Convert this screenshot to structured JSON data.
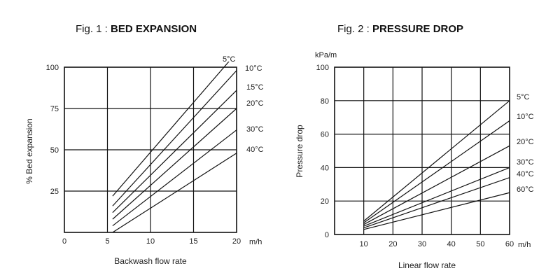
{
  "chart_data": [
    {
      "type": "line",
      "title_prefix": "Fig. 1 : ",
      "title_bold": "BED EXPANSION",
      "xlabel": "Backwash flow rate",
      "ylabel": "% Bed expansion",
      "xunit": "m/h",
      "xlim": [
        0,
        20
      ],
      "ylim": [
        0,
        100
      ],
      "xticks": [
        0,
        5,
        10,
        15,
        20
      ],
      "xtick_labels": [
        "0",
        "5",
        "10",
        "15",
        "20"
      ],
      "yticks": [
        25,
        50,
        75,
        100
      ],
      "ytick_labels": [
        "25",
        "50",
        "75",
        "100"
      ],
      "grid": true,
      "series": [
        {
          "name": "5°C",
          "x": [
            5.6,
            19.2
          ],
          "y": [
            22,
            104
          ]
        },
        {
          "name": "10°C",
          "x": [
            5.6,
            20
          ],
          "y": [
            16,
            98
          ]
        },
        {
          "name": "15°C",
          "x": [
            5.6,
            20
          ],
          "y": [
            12,
            86
          ]
        },
        {
          "name": "20°C",
          "x": [
            5.6,
            20
          ],
          "y": [
            8,
            75
          ]
        },
        {
          "name": "30°C",
          "x": [
            5.6,
            20
          ],
          "y": [
            4,
            62
          ]
        },
        {
          "name": "40°C",
          "x": [
            5.6,
            20
          ],
          "y": [
            0,
            48
          ]
        }
      ]
    },
    {
      "type": "line",
      "title_prefix": "Fig. 2 : ",
      "title_bold": "PRESSURE DROP",
      "xlabel": "Linear flow rate",
      "ylabel": "Pressure drop",
      "yunit": "kPa/m",
      "xunit": "m/h",
      "xlim": [
        0,
        60
      ],
      "ylim": [
        0,
        100
      ],
      "xticks": [
        10,
        20,
        30,
        40,
        50,
        60
      ],
      "xtick_labels": [
        "10",
        "20",
        "30",
        "40",
        "50",
        "60"
      ],
      "yticks": [
        0,
        20,
        40,
        60,
        80,
        100
      ],
      "ytick_labels": [
        "0",
        "20",
        "40",
        "60",
        "80",
        "100"
      ],
      "grid": true,
      "series": [
        {
          "name": "5°C",
          "x": [
            10,
            60
          ],
          "y": [
            8,
            80
          ]
        },
        {
          "name": "10°C",
          "x": [
            10,
            60
          ],
          "y": [
            7,
            68
          ]
        },
        {
          "name": "20°C",
          "x": [
            10,
            60
          ],
          "y": [
            6,
            53
          ]
        },
        {
          "name": "30°C",
          "x": [
            10,
            60
          ],
          "y": [
            5,
            40
          ]
        },
        {
          "name": "40°C",
          "x": [
            10,
            60
          ],
          "y": [
            4,
            34
          ]
        },
        {
          "name": "60°C",
          "x": [
            10,
            60
          ],
          "y": [
            3,
            25
          ]
        }
      ]
    }
  ]
}
